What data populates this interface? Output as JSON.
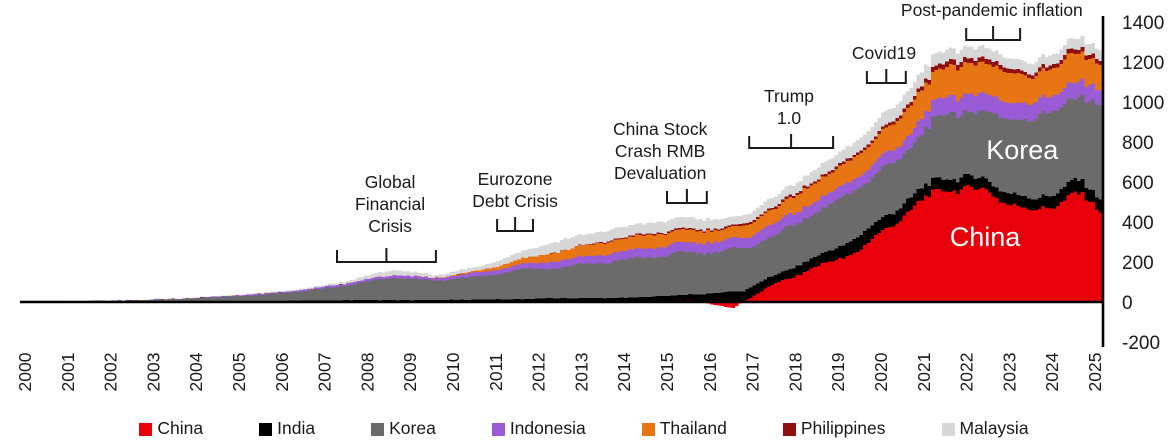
{
  "chart_data": {
    "type": "area",
    "stacked": true,
    "title": "",
    "xlabel": "",
    "ylabel": "",
    "x_years": [
      2000,
      2001,
      2002,
      2003,
      2004,
      2005,
      2006,
      2007,
      2008,
      2009,
      2010,
      2011,
      2012,
      2013,
      2014,
      2015,
      2016,
      2017,
      2018,
      2019,
      2020,
      2021,
      2022,
      2023,
      2024,
      2025
    ],
    "x_tick_labels": [
      "2000",
      "2001",
      "2002",
      "2003",
      "2004",
      "2005",
      "2006",
      "2007",
      "2008",
      "2009",
      "2010",
      "2011",
      "2012",
      "2013",
      "2014",
      "2015",
      "2016",
      "2017",
      "2018",
      "2019",
      "2020",
      "2021",
      "2022",
      "2023",
      "2024",
      "2025"
    ],
    "y_axis": {
      "side": "right",
      "min": -200,
      "max": 1400,
      "ticks": [
        1400,
        1200,
        1000,
        800,
        600,
        400,
        200,
        0,
        -200
      ]
    },
    "series": [
      {
        "name": "China",
        "color": "#e8000b",
        "values": [
          0,
          0,
          0,
          0,
          0,
          0,
          0,
          0,
          0,
          0,
          0,
          0,
          0,
          0,
          0,
          8,
          -30,
          95,
          180,
          260,
          430,
          580,
          560,
          450,
          530,
          400
        ]
      },
      {
        "name": "India",
        "color": "#000000",
        "values": [
          1,
          1,
          2,
          3,
          4,
          5,
          7,
          9,
          9,
          9,
          11,
          14,
          20,
          19,
          24,
          30,
          55,
          45,
          50,
          70,
          60,
          60,
          55,
          55,
          65,
          60
        ]
      },
      {
        "name": "Korea",
        "color": "#6b6b6b",
        "values": [
          2,
          4,
          6,
          11,
          20,
          30,
          48,
          76,
          111,
          96,
          114,
          151,
          155,
          176,
          196,
          212,
          215,
          200,
          220,
          240,
          250,
          330,
          335,
          395,
          415,
          470
        ]
      },
      {
        "name": "Indonesia",
        "color": "#9a5cd6",
        "values": [
          0,
          0,
          1,
          1,
          3,
          5,
          7,
          10,
          13,
          12,
          20,
          25,
          35,
          40,
          45,
          50,
          50,
          60,
          55,
          60,
          70,
          90,
          85,
          80,
          80,
          80
        ]
      },
      {
        "name": "Thailand",
        "color": "#e87514",
        "values": [
          0,
          0,
          0,
          0,
          0,
          0,
          0,
          0,
          0,
          0,
          8,
          25,
          45,
          60,
          68,
          62,
          55,
          75,
          95,
          110,
          140,
          145,
          155,
          135,
          145,
          125
        ]
      },
      {
        "name": "Philippines",
        "color": "#8e0f0f",
        "values": [
          0,
          0,
          0,
          0,
          0,
          0,
          0,
          0,
          0,
          0,
          0,
          0,
          1,
          5,
          6,
          8,
          8,
          10,
          12,
          12,
          15,
          25,
          25,
          18,
          23,
          17
        ]
      },
      {
        "name": "Malaysia",
        "color": "#d7d7d7",
        "values": [
          1,
          1,
          1,
          2,
          3,
          4,
          6,
          10,
          27,
          15,
          19,
          35,
          54,
          55,
          53,
          55,
          42,
          50,
          58,
          63,
          70,
          60,
          55,
          52,
          52,
          53
        ]
      }
    ],
    "annotations": [
      {
        "lines": [
          "Global",
          "Financial",
          "Crisis"
        ],
        "x1": 2007.29,
        "x2": 2009.6,
        "y": 200,
        "label_x": 2008.53,
        "gap": 30
      },
      {
        "lines": [
          "Eurozone",
          "Debt Crisis"
        ],
        "x1": 2011.03,
        "x2": 2011.87,
        "y": 355,
        "label_x": 2011.45,
        "gap": 24
      },
      {
        "lines": [
          "China Stock",
          "Crash RMB",
          "Devaluation"
        ],
        "x1": 2015.0,
        "x2": 2015.93,
        "y": 495,
        "label_x": 2014.84,
        "gap": 24
      },
      {
        "lines": [
          "Trump",
          "1.0"
        ],
        "x1": 2016.92,
        "x2": 2018.88,
        "y": 770,
        "label_x": 2017.85,
        "gap": 24
      },
      {
        "lines": [
          "Covid19"
        ],
        "x1": 2019.67,
        "x2": 2020.58,
        "y": 1095,
        "label_x": 2020.07,
        "gap": 24
      },
      {
        "lines": [
          "Post-pandemic inflation"
        ],
        "x1": 2021.99,
        "x2": 2023.25,
        "y": 1310,
        "label_x": 2022.59,
        "gap": 24
      }
    ],
    "area_labels": [
      {
        "text": "Korea",
        "x": 2023.3,
        "y": 760,
        "color": "#ffffff"
      },
      {
        "text": "China",
        "x": 2022.43,
        "y": 325,
        "color": "#ffffff"
      }
    ],
    "legend": {
      "position": "bottom",
      "items": [
        {
          "label": "China",
          "color": "#e8000b"
        },
        {
          "label": "India",
          "color": "#000000"
        },
        {
          "label": "Korea",
          "color": "#6b6b6b"
        },
        {
          "label": "Indonesia",
          "color": "#9a5cd6"
        },
        {
          "label": "Thailand",
          "color": "#e87514"
        },
        {
          "label": "Philippines",
          "color": "#8e0f0f"
        },
        {
          "label": "Malaysia",
          "color": "#d7d7d7"
        }
      ]
    },
    "axis_color": "#000000",
    "text_color": "#1a1a1a",
    "grid": false
  }
}
